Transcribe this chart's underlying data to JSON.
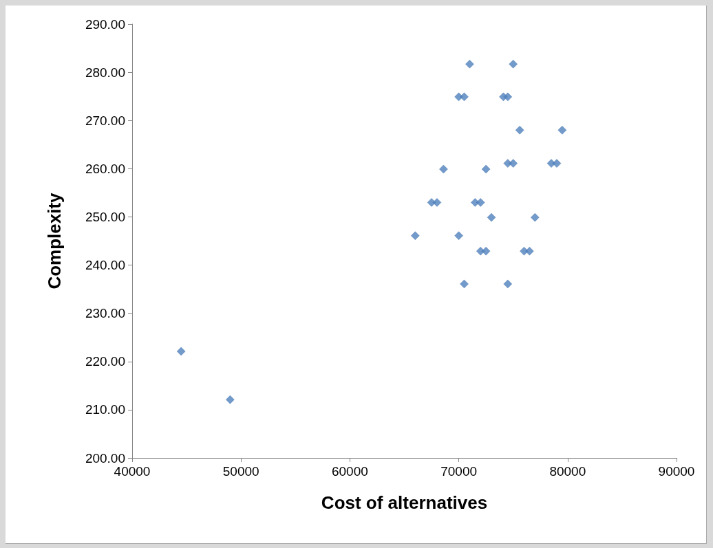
{
  "chart_data": {
    "type": "scatter",
    "xlabel": "Cost of alternatives",
    "ylabel": "Complexity",
    "x": [
      71000,
      75000,
      70000,
      70500,
      74100,
      74500,
      75600,
      79500,
      68600,
      72500,
      74500,
      75000,
      78500,
      79000,
      67500,
      68000,
      71500,
      72000,
      73000,
      77000,
      66000,
      70000,
      72000,
      72500,
      76000,
      76500,
      70500,
      74500,
      44500,
      49000
    ],
    "values": [
      281.7,
      281.7,
      274.9,
      274.9,
      274.9,
      274.9,
      268.0,
      268.0,
      259.9,
      259.9,
      261.1,
      261.1,
      261.1,
      261.1,
      253.0,
      253.0,
      253.0,
      253.0,
      249.9,
      249.9,
      246.1,
      246.1,
      242.9,
      242.9,
      242.9,
      242.9,
      236.1,
      236.1,
      222.1,
      212.1
    ],
    "color": "#4f81bd",
    "marker": "diamond",
    "grid": false,
    "xlim": [
      40000,
      90000
    ],
    "xticks": [
      40000,
      50000,
      60000,
      70000,
      80000,
      90000
    ],
    "ylim": [
      200,
      290
    ],
    "yticks": [
      {
        "value": 200,
        "label": "200.00"
      },
      {
        "value": 210,
        "label": "210.00"
      },
      {
        "value": 220,
        "label": "220.00"
      },
      {
        "value": 230,
        "label": "230.00"
      },
      {
        "value": 240,
        "label": "240.00"
      },
      {
        "value": 250,
        "label": "250.00"
      },
      {
        "value": 260,
        "label": "260.00"
      },
      {
        "value": 270,
        "label": "270.00"
      },
      {
        "value": 280,
        "label": "280.00"
      },
      {
        "value": 290,
        "label": "290.00"
      }
    ]
  }
}
